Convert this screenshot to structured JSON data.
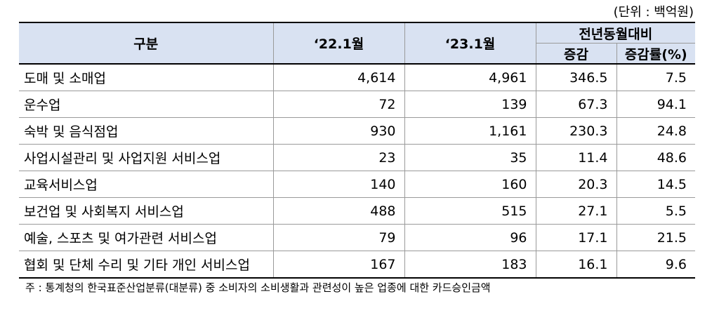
{
  "unit_note": "(단위 : 백억원)",
  "table": {
    "headers": {
      "category": "구분",
      "col1": "‘22.1월",
      "col2": "‘23.1월",
      "yoy_group": "전년동월대비",
      "change": "증감",
      "change_rate": "증감률(%)"
    },
    "rows": [
      {
        "category": "도매 및 소매업",
        "v2022": "4,614",
        "v2023": "4,961",
        "change": "346.5",
        "rate": "7.5"
      },
      {
        "category": "운수업",
        "v2022": "72",
        "v2023": "139",
        "change": "67.3",
        "rate": "94.1"
      },
      {
        "category": "숙박 및 음식점업",
        "v2022": "930",
        "v2023": "1,161",
        "change": "230.3",
        "rate": "24.8"
      },
      {
        "category": "사업시설관리 및 사업지원 서비스업",
        "v2022": "23",
        "v2023": "35",
        "change": "11.4",
        "rate": "48.6"
      },
      {
        "category": "교육서비스업",
        "v2022": "140",
        "v2023": "160",
        "change": "20.3",
        "rate": "14.5"
      },
      {
        "category": "보건업 및 사회복지 서비스업",
        "v2022": "488",
        "v2023": "515",
        "change": "27.1",
        "rate": "5.5"
      },
      {
        "category": "예술, 스포츠 및 여가관련 서비스업",
        "v2022": "79",
        "v2023": "96",
        "change": "17.1",
        "rate": "21.5"
      },
      {
        "category": "협회 및 단체 수리 및 기타 개인 서비스업",
        "v2022": "167",
        "v2023": "183",
        "change": "16.1",
        "rate": "9.6"
      }
    ]
  },
  "footnote": "주 : 통계청의 한국표준산업분류(대분류) 중 소비자의 소비생활과 관련성이 높은 업종에 대한 카드승인금액"
}
